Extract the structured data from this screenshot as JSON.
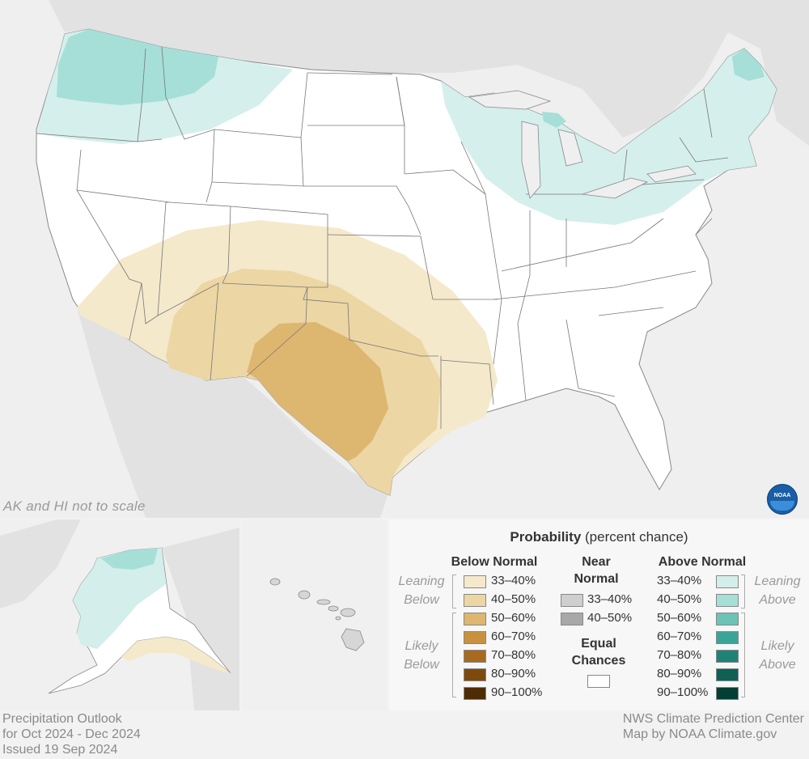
{
  "map": {
    "scale_note": "AK and HI not to scale",
    "logo_text": "NOAA",
    "regions": [
      {
        "name": "Pacific Northwest / Northern Rockies",
        "category": "Above Normal",
        "probability": "33-40%"
      },
      {
        "name": "Washington / Northern Idaho core",
        "category": "Above Normal",
        "probability": "40-50%"
      },
      {
        "name": "Great Lakes / Ohio Valley / Northeast",
        "category": "Above Normal",
        "probability": "33-40%"
      },
      {
        "name": "Northern Michigan & Maine",
        "category": "Above Normal",
        "probability": "40-50%"
      },
      {
        "name": "Southwest / Southern Plains",
        "category": "Below Normal",
        "probability": "33-40%"
      },
      {
        "name": "New Mexico / Texas ring",
        "category": "Below Normal",
        "probability": "40-50%"
      },
      {
        "name": "West Texas core",
        "category": "Below Normal",
        "probability": "50-60%"
      },
      {
        "name": "Northern Alaska",
        "category": "Above Normal",
        "probability": "33-40%"
      },
      {
        "name": "Southern Alaska coast",
        "category": "Below Normal",
        "probability": "33-40%"
      }
    ]
  },
  "legend": {
    "title_bold": "Probability",
    "title_rest": " (percent chance)",
    "below_header": "Below Normal",
    "near_header_1": "Near",
    "near_header_2": "Normal",
    "above_header": "Above Normal",
    "leaning_below_1": "Leaning",
    "leaning_below_2": "Below",
    "likely_below_1": "Likely",
    "likely_below_2": "Below",
    "leaning_above_1": "Leaning",
    "leaning_above_2": "Above",
    "likely_above_1": "Likely",
    "likely_above_2": "Above",
    "equal_1": "Equal",
    "equal_2": "Chances",
    "below": [
      {
        "label": "33–40%",
        "color": "#f5e9cc"
      },
      {
        "label": "40–50%",
        "color": "#ecd6a4"
      },
      {
        "label": "50–60%",
        "color": "#ddb670"
      },
      {
        "label": "60–70%",
        "color": "#c9913e"
      },
      {
        "label": "70–80%",
        "color": "#a86a1f"
      },
      {
        "label": "80–90%",
        "color": "#7d4a0e"
      },
      {
        "label": "90–100%",
        "color": "#4e2c06"
      }
    ],
    "near": [
      {
        "label": "33–40%",
        "color": "#cfcfcf"
      },
      {
        "label": "40–50%",
        "color": "#a8a8a8"
      }
    ],
    "above": [
      {
        "label": "33–40%",
        "color": "#d3eeeb"
      },
      {
        "label": "40–50%",
        "color": "#a5dfd8"
      },
      {
        "label": "50–60%",
        "color": "#6cc3b6"
      },
      {
        "label": "60–70%",
        "color": "#3ba498"
      },
      {
        "label": "70–80%",
        "color": "#1e8276"
      },
      {
        "label": "80–90%",
        "color": "#0f6055"
      },
      {
        "label": "90–100%",
        "color": "#053e35"
      }
    ]
  },
  "footer": {
    "left_line1": "Precipitation Outlook",
    "left_line2": "for Oct 2024 - Dec 2024",
    "left_line3": "Issued 19 Sep 2024",
    "right_line1": "NWS Climate Prediction Center",
    "right_line2": "Map by NOAA Climate.gov"
  }
}
